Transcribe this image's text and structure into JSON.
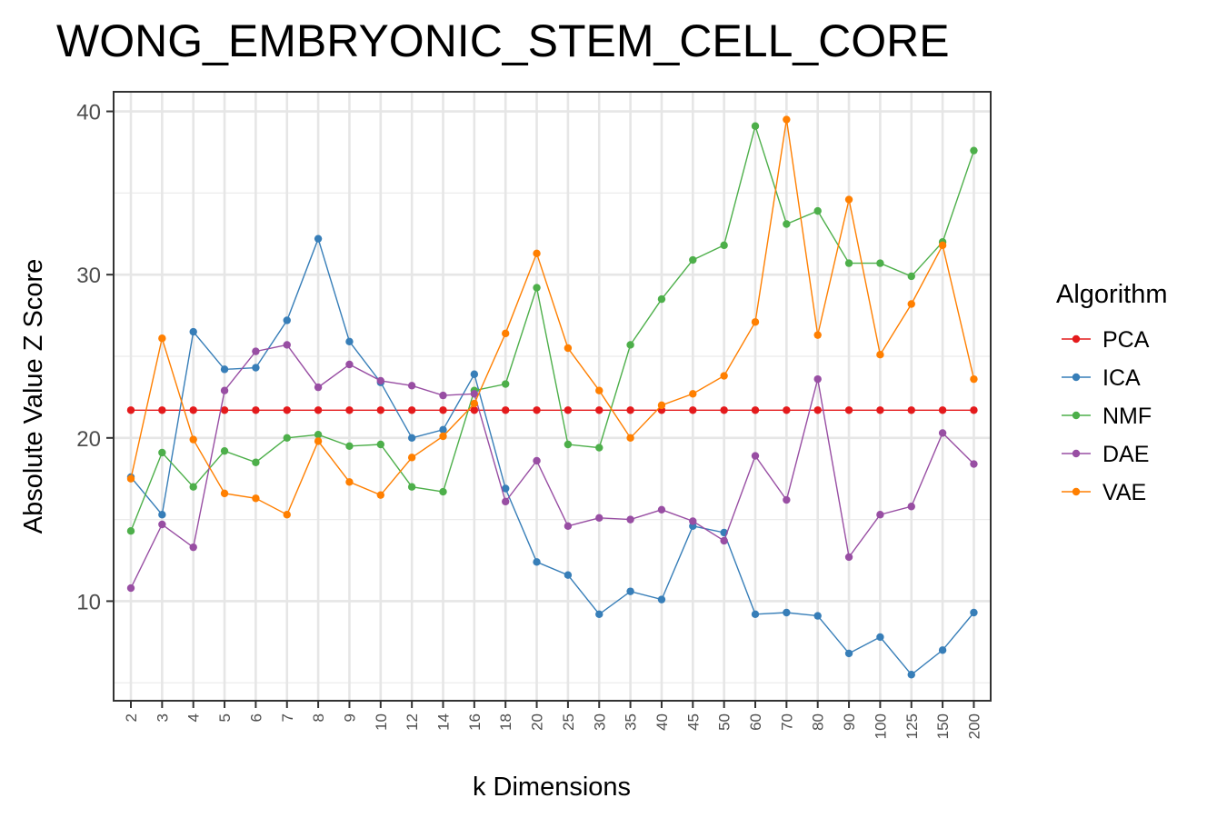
{
  "chart_data": {
    "type": "line",
    "title": "WONG_EMBRYONIC_STEM_CELL_CORE",
    "xlabel": "k Dimensions",
    "ylabel": "Absolute Value Z Score",
    "x": [
      "2",
      "3",
      "4",
      "5",
      "6",
      "7",
      "8",
      "9",
      "10",
      "12",
      "14",
      "16",
      "18",
      "20",
      "25",
      "30",
      "35",
      "40",
      "45",
      "50",
      "60",
      "70",
      "80",
      "90",
      "100",
      "125",
      "150",
      "200"
    ],
    "y_ticks": [
      10,
      20,
      30,
      40
    ],
    "ylim": [
      3.9,
      41.2
    ],
    "grid": true,
    "legend": {
      "title": "Algorithm",
      "position": "right"
    },
    "series": [
      {
        "name": "PCA",
        "color": "#e41a1c",
        "values": [
          21.7,
          21.7,
          21.7,
          21.7,
          21.7,
          21.7,
          21.7,
          21.7,
          21.7,
          21.7,
          21.7,
          21.7,
          21.7,
          21.7,
          21.7,
          21.7,
          21.7,
          21.7,
          21.7,
          21.7,
          21.7,
          21.7,
          21.7,
          21.7,
          21.7,
          21.7,
          21.7,
          21.7
        ]
      },
      {
        "name": "ICA",
        "color": "#377eb8",
        "values": [
          17.6,
          15.3,
          26.5,
          24.2,
          24.3,
          27.2,
          32.2,
          25.9,
          23.4,
          20.0,
          20.5,
          23.9,
          16.9,
          12.4,
          11.6,
          9.2,
          10.6,
          10.1,
          14.6,
          14.2,
          9.2,
          9.3,
          9.1,
          6.8,
          7.8,
          5.5,
          7.0,
          9.3
        ]
      },
      {
        "name": "NMF",
        "color": "#4daf4a",
        "values": [
          14.3,
          19.1,
          17.0,
          19.2,
          18.5,
          20.0,
          20.2,
          19.5,
          19.6,
          17.0,
          16.7,
          22.9,
          23.3,
          29.2,
          19.6,
          19.4,
          25.7,
          28.5,
          30.9,
          31.8,
          39.1,
          33.1,
          33.9,
          30.7,
          30.7,
          29.9,
          32.0,
          37.6
        ]
      },
      {
        "name": "DAE",
        "color": "#984ea3",
        "values": [
          10.8,
          14.7,
          13.3,
          22.9,
          25.3,
          25.7,
          23.1,
          24.5,
          23.5,
          23.2,
          22.6,
          22.7,
          16.1,
          18.6,
          14.6,
          15.1,
          15.0,
          15.6,
          14.9,
          13.7,
          18.9,
          16.2,
          23.6,
          12.7,
          15.3,
          15.8,
          20.3,
          18.4
        ]
      },
      {
        "name": "VAE",
        "color": "#ff7f00",
        "values": [
          17.5,
          26.1,
          19.9,
          16.6,
          16.3,
          15.3,
          19.8,
          17.3,
          16.5,
          18.8,
          20.1,
          22.1,
          26.4,
          31.3,
          25.5,
          22.9,
          20.0,
          22.0,
          22.7,
          23.8,
          27.1,
          39.5,
          26.3,
          34.6,
          25.1,
          28.2,
          31.8,
          23.6
        ]
      }
    ]
  }
}
